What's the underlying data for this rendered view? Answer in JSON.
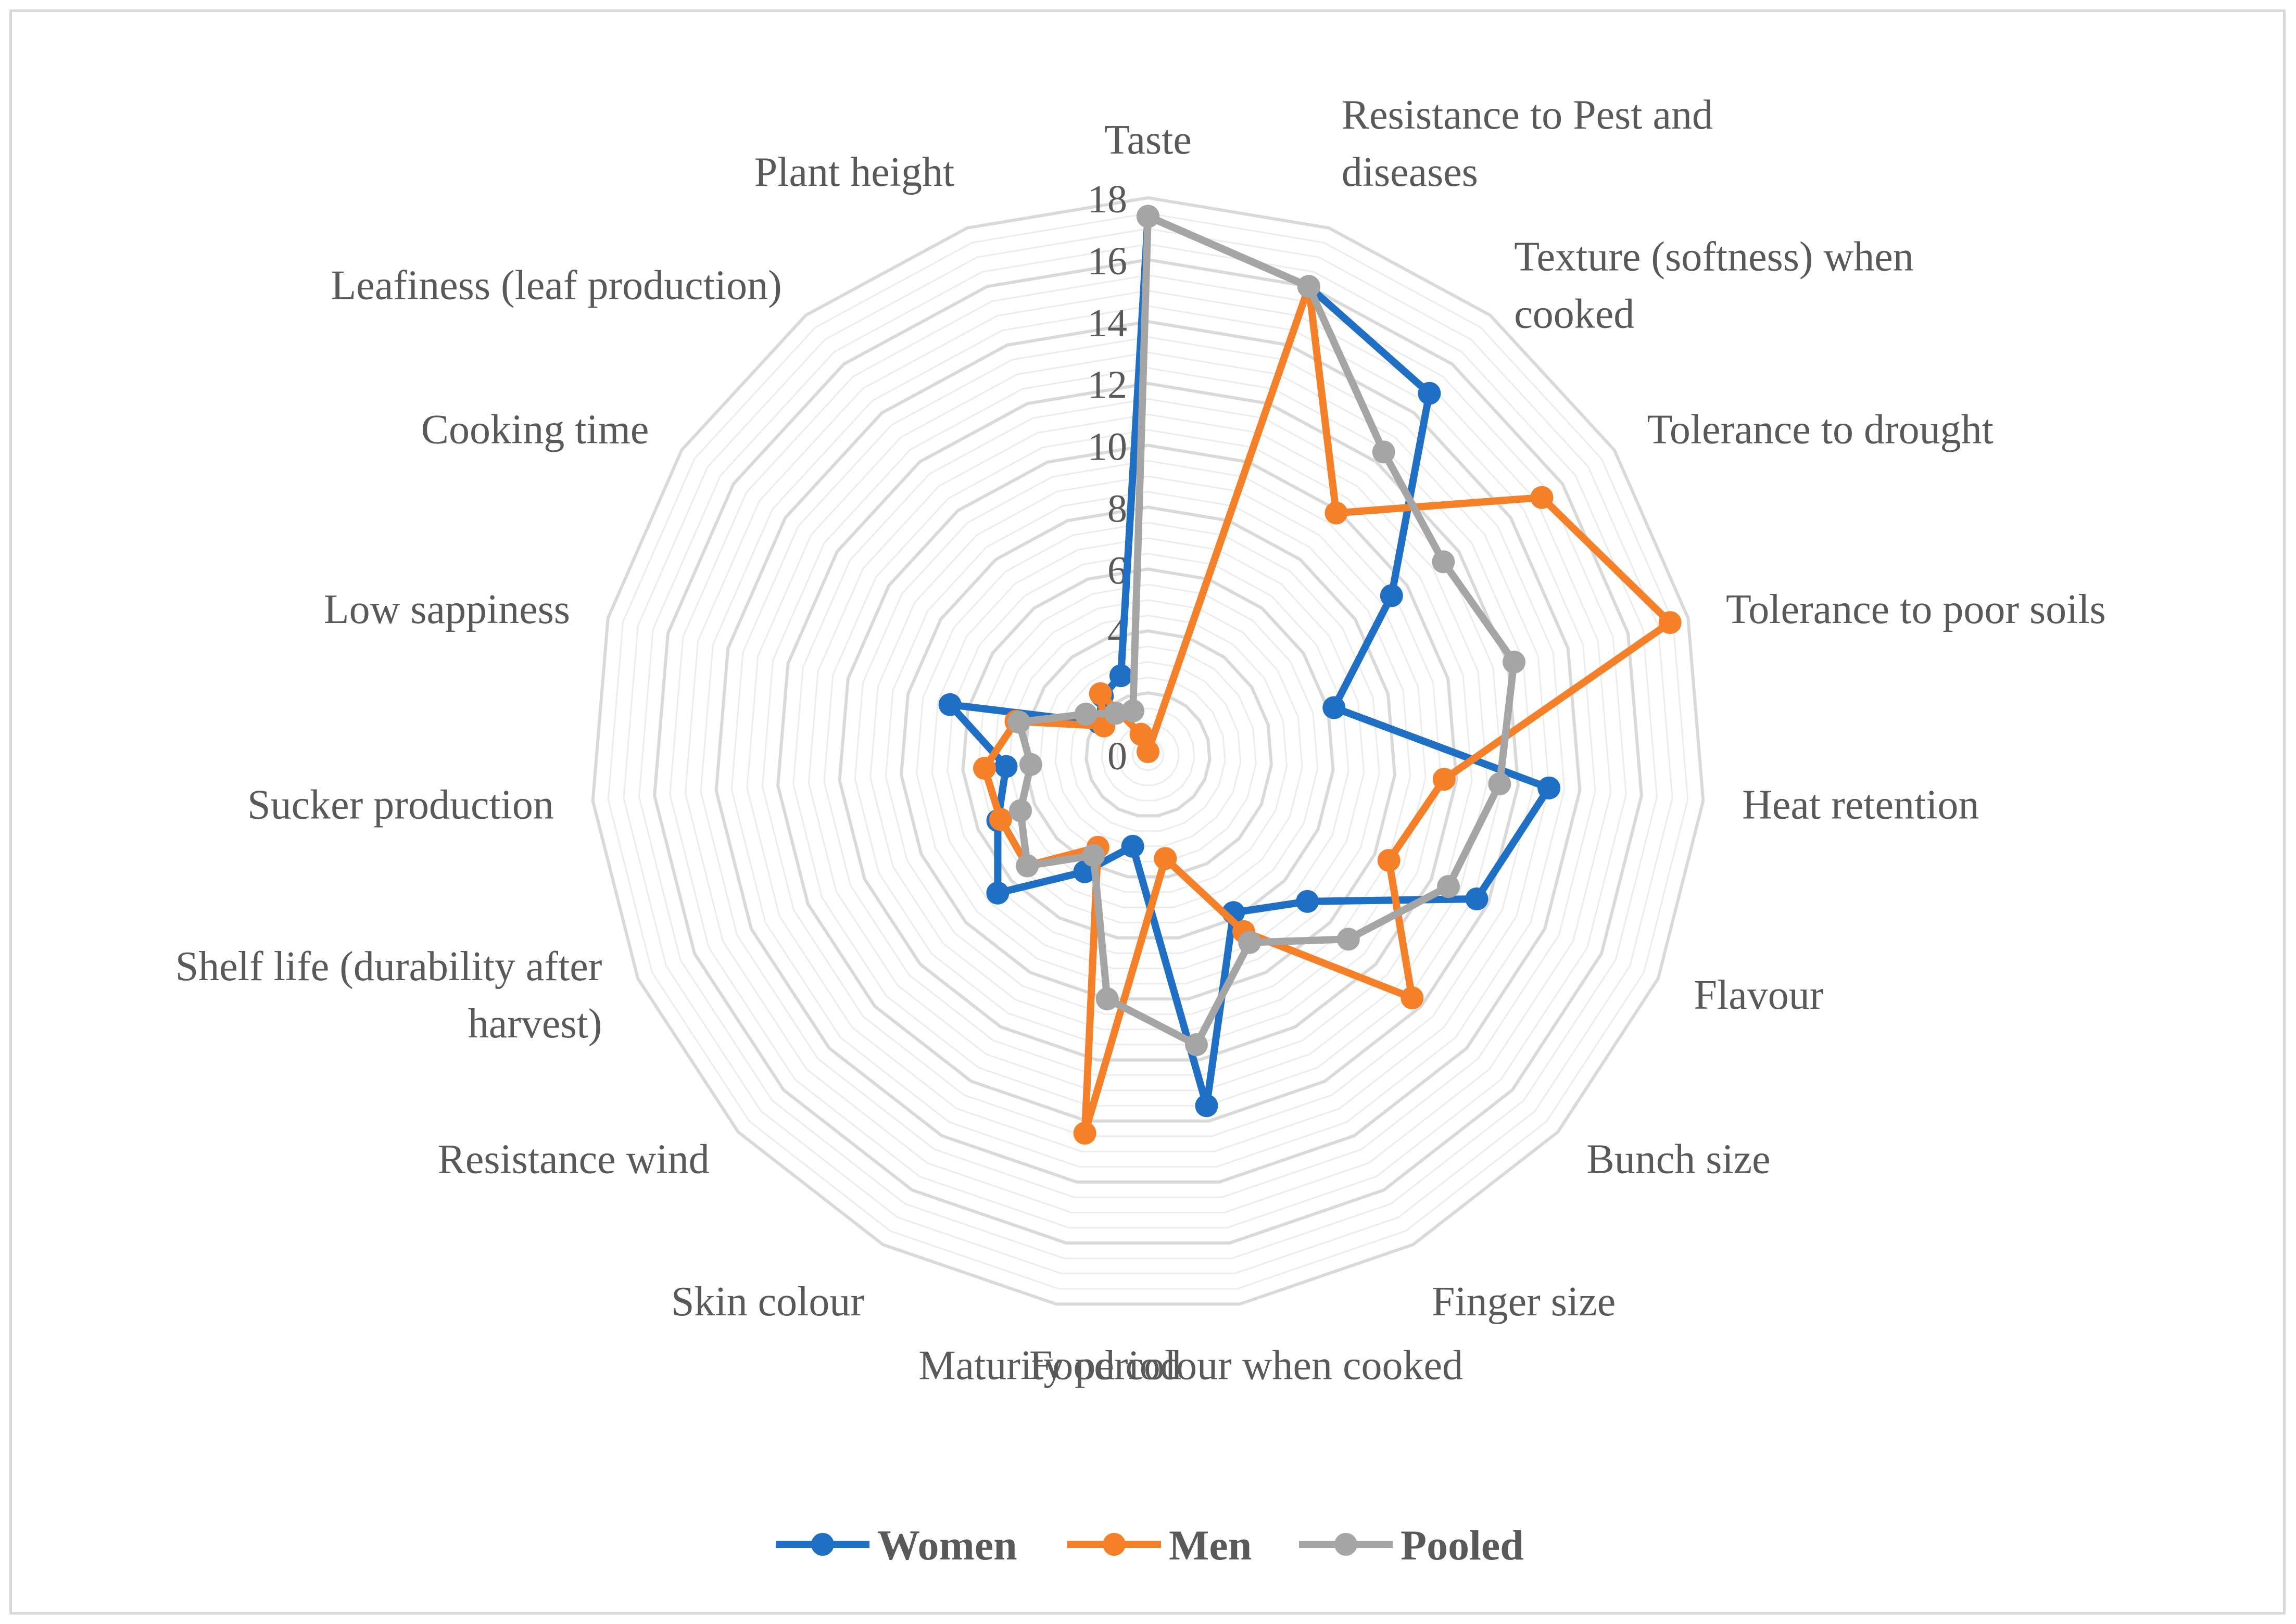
{
  "chart_data": {
    "type": "radar",
    "title": "",
    "axis_min": 0,
    "axis_max": 18,
    "axis_step": 2,
    "ticks": [
      "0",
      "4",
      "6",
      "8",
      "10",
      "12",
      "14",
      "16",
      "18"
    ],
    "categories": [
      "Taste",
      "Resistance to Pest and diseases",
      "Texture (softness) when cooked",
      "Tolerance to drought",
      "Tolerance to poor soils",
      "Heat retention",
      "Flavour",
      "Bunch size",
      "Finger size",
      "Food colour when cooked",
      "Maturity period",
      "Skin colour",
      "Resistance wind",
      "Shelf life (durability after harvest)",
      "Sucker production",
      "Low sappiness",
      "Cooking time",
      "Leafiness (leaf production)",
      "Plant height"
    ],
    "category_label_lines": [
      [
        "Taste"
      ],
      [
        "Resistance to Pest and",
        "diseases"
      ],
      [
        "Texture (softness) when",
        "cooked"
      ],
      [
        "Tolerance to drought"
      ],
      [
        "Tolerance to poor soils"
      ],
      [
        "Heat retention"
      ],
      [
        "Flavour"
      ],
      [
        "Bunch size"
      ],
      [
        "Finger size"
      ],
      [
        "Food colour when cooked"
      ],
      [
        "Maturity period"
      ],
      [
        "Skin colour"
      ],
      [
        "Resistance wind"
      ],
      [
        "Shelf life (durability after",
        "harvest)"
      ],
      [
        "Sucker production"
      ],
      [
        "Low sappiness"
      ],
      [
        "Cooking time"
      ],
      [
        "Leafiness (leaf production)"
      ],
      [
        "Plant height"
      ]
    ],
    "series": [
      {
        "name": "Women",
        "color": "#1f6fc5",
        "values": [
          17.4,
          16.0,
          14.8,
          9.4,
          6.2,
          13.0,
          11.6,
          7.0,
          5.8,
          11.5,
          3.0,
          4.3,
          6.6,
          5.3,
          4.6,
          6.6,
          1.9,
          2.4,
          2.7
        ]
      },
      {
        "name": "Men",
        "color": "#f5802a",
        "values": [
          0.1,
          16.0,
          9.9,
          15.2,
          17.4,
          9.6,
          8.5,
          11.6,
          6.5,
          3.4,
          12.4,
          3.4,
          5.3,
          5.2,
          5.3,
          4.4,
          1.7,
          2.5,
          0.7
        ]
      },
      {
        "name": "Pooled",
        "color": "#a5a5a5",
        "values": [
          17.4,
          16.0,
          12.4,
          11.4,
          12.2,
          11.4,
          10.6,
          8.8,
          6.9,
          9.5,
          8.0,
          3.7,
          5.3,
          4.5,
          3.8,
          4.3,
          2.4,
          1.7,
          1.5
        ]
      }
    ],
    "legend": "bottom",
    "grid": true
  }
}
